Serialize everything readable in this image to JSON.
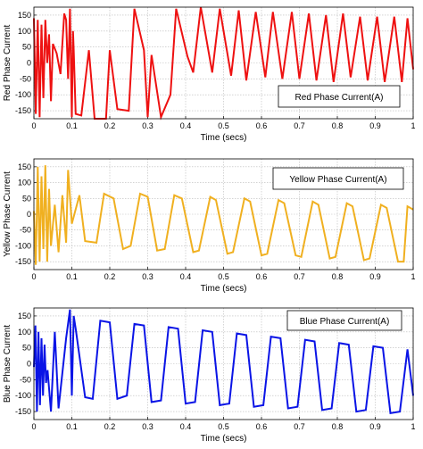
{
  "chart_data": [
    {
      "type": "line",
      "ylabel": "Red Phase Current",
      "xlabel": "Time (secs)",
      "legend": "Red Phase Current(A)",
      "legend_position": "right",
      "color": "#ee1111",
      "xlim": [
        0,
        1
      ],
      "ylim": [
        -175,
        175
      ],
      "xticks": [
        "0",
        "0.1",
        "0.2",
        "0.3",
        "0.4",
        "0.5",
        "0.6",
        "0.7",
        "0.8",
        "0.9",
        "1"
      ],
      "yticks": [
        "-150",
        "-100",
        "-50",
        "0",
        "50",
        "100",
        "150"
      ],
      "grid": true,
      "x": [
        0.0,
        0.005,
        0.01,
        0.015,
        0.02,
        0.025,
        0.03,
        0.035,
        0.04,
        0.045,
        0.05,
        0.06,
        0.07,
        0.08,
        0.085,
        0.09,
        0.095,
        0.1,
        0.103,
        0.105,
        0.11,
        0.125,
        0.145,
        0.16,
        0.19,
        0.2,
        0.22,
        0.25,
        0.265,
        0.29,
        0.3,
        0.31,
        0.335,
        0.36,
        0.375,
        0.405,
        0.42,
        0.44,
        0.47,
        0.49,
        0.52,
        0.54,
        0.56,
        0.585,
        0.61,
        0.63,
        0.655,
        0.68,
        0.7,
        0.725,
        0.745,
        0.77,
        0.79,
        0.815,
        0.835,
        0.86,
        0.88,
        0.905,
        0.925,
        0.95,
        0.97,
        0.985,
        1.0
      ],
      "y": [
        140,
        -160,
        135,
        -170,
        120,
        -110,
        135,
        0,
        90,
        -120,
        60,
        30,
        -35,
        155,
        135,
        -50,
        170,
        -170,
        100,
        40,
        -160,
        -165,
        40,
        -175,
        -175,
        40,
        -145,
        -150,
        170,
        40,
        -170,
        25,
        -170,
        -100,
        170,
        20,
        -30,
        175,
        -30,
        170,
        -40,
        165,
        -55,
        160,
        -45,
        160,
        -50,
        160,
        -50,
        155,
        -55,
        150,
        -60,
        155,
        -45,
        145,
        -55,
        145,
        -60,
        145,
        -60,
        140,
        -20
      ]
    },
    {
      "type": "line",
      "ylabel": "Yellow Phase Current",
      "xlabel": "Time (secs)",
      "legend": "Yellow Phase Current(A)",
      "legend_position": "right",
      "color": "#f0b020",
      "xlim": [
        0,
        1
      ],
      "ylim": [
        -175,
        175
      ],
      "xticks": [
        "0",
        "0.1",
        "0.2",
        "0.3",
        "0.4",
        "0.5",
        "0.6",
        "0.7",
        "0.8",
        "0.9",
        "1"
      ],
      "yticks": [
        "-150",
        "-100",
        "-50",
        "0",
        "50",
        "100",
        "150"
      ],
      "grid": true,
      "x": [
        0.0,
        0.005,
        0.01,
        0.015,
        0.02,
        0.025,
        0.03,
        0.035,
        0.04,
        0.045,
        0.055,
        0.065,
        0.075,
        0.085,
        0.09,
        0.1,
        0.12,
        0.135,
        0.165,
        0.185,
        0.21,
        0.235,
        0.255,
        0.28,
        0.3,
        0.325,
        0.345,
        0.37,
        0.39,
        0.42,
        0.435,
        0.465,
        0.48,
        0.51,
        0.525,
        0.555,
        0.57,
        0.6,
        0.615,
        0.645,
        0.66,
        0.69,
        0.705,
        0.735,
        0.75,
        0.78,
        0.795,
        0.825,
        0.84,
        0.87,
        0.885,
        0.915,
        0.93,
        0.96,
        0.975,
        0.985,
        1.0
      ],
      "y": [
        10,
        -160,
        150,
        -150,
        120,
        -110,
        155,
        -150,
        80,
        -100,
        30,
        -120,
        60,
        -90,
        140,
        -30,
        60,
        -85,
        -90,
        65,
        50,
        -110,
        -100,
        65,
        55,
        -115,
        -110,
        60,
        50,
        -120,
        -115,
        55,
        45,
        -125,
        -120,
        50,
        40,
        -130,
        -125,
        45,
        35,
        -130,
        -135,
        40,
        30,
        -140,
        -135,
        35,
        25,
        -145,
        -140,
        30,
        20,
        -150,
        -150,
        25,
        15
      ]
    },
    {
      "type": "line",
      "ylabel": "Blue Phase Current",
      "xlabel": "Time (secs)",
      "legend": "Blue Phase Current(A)",
      "legend_position": "top-right",
      "color": "#0a14e6",
      "xlim": [
        0,
        1
      ],
      "ylim": [
        -175,
        175
      ],
      "xticks": [
        "0",
        "0.1",
        "0.2",
        "0.3",
        "0.4",
        "0.5",
        "0.6",
        "0.7",
        "0.8",
        "0.9",
        "1"
      ],
      "yticks": [
        "-150",
        "-100",
        "-50",
        "0",
        "50",
        "100",
        "150"
      ],
      "grid": true,
      "x": [
        0.0,
        0.004,
        0.008,
        0.012,
        0.016,
        0.02,
        0.024,
        0.028,
        0.032,
        0.036,
        0.045,
        0.055,
        0.065,
        0.085,
        0.095,
        0.1,
        0.105,
        0.11,
        0.135,
        0.155,
        0.175,
        0.2,
        0.22,
        0.245,
        0.265,
        0.29,
        0.31,
        0.335,
        0.355,
        0.38,
        0.4,
        0.425,
        0.445,
        0.47,
        0.49,
        0.515,
        0.535,
        0.56,
        0.58,
        0.605,
        0.625,
        0.65,
        0.67,
        0.695,
        0.715,
        0.74,
        0.76,
        0.785,
        0.805,
        0.83,
        0.85,
        0.875,
        0.895,
        0.92,
        0.94,
        0.965,
        0.985,
        1.0
      ],
      "y": [
        -10,
        120,
        -150,
        100,
        -130,
        80,
        -100,
        60,
        -60,
        -20,
        -150,
        100,
        -140,
        80,
        170,
        -100,
        150,
        110,
        -105,
        -110,
        135,
        130,
        -110,
        -100,
        125,
        120,
        -120,
        -115,
        115,
        110,
        -125,
        -120,
        105,
        100,
        -130,
        -125,
        95,
        90,
        -135,
        -130,
        85,
        80,
        -140,
        -135,
        75,
        70,
        -145,
        -140,
        65,
        60,
        -150,
        -145,
        55,
        50,
        -155,
        -150,
        45,
        -100
      ]
    }
  ]
}
